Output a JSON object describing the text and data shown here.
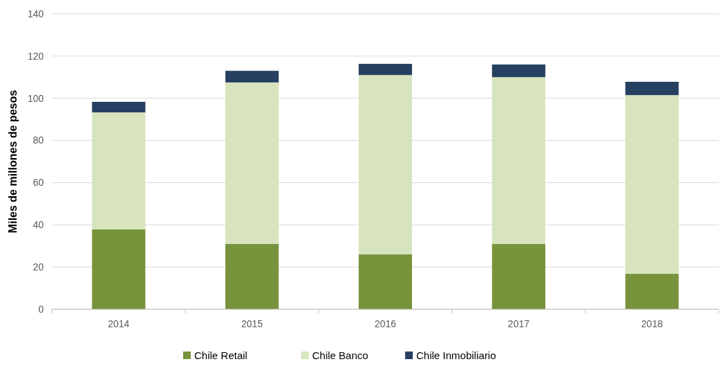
{
  "chart_data": {
    "type": "bar",
    "stacked": true,
    "ylabel": "Miles de millones de pesos",
    "categories": [
      "2014",
      "2015",
      "2016",
      "2017",
      "2018"
    ],
    "series": [
      {
        "name": "Chile Retail",
        "color": "#77933c",
        "values": [
          37.8,
          30.9,
          26,
          30.9,
          16.8
        ]
      },
      {
        "name": "Chile Banco",
        "color": "#d7e4bd",
        "values": [
          55.5,
          76.6,
          85,
          79.1,
          84.7
        ]
      },
      {
        "name": "Chile Inmobiliario",
        "color": "#254061",
        "values": [
          5,
          5.5,
          5.3,
          6,
          6.3
        ]
      }
    ],
    "ylim": [
      0,
      140
    ],
    "yticks": [
      0,
      20,
      40,
      60,
      80,
      100,
      120,
      140
    ],
    "grid": "y",
    "legend": "bottom"
  }
}
